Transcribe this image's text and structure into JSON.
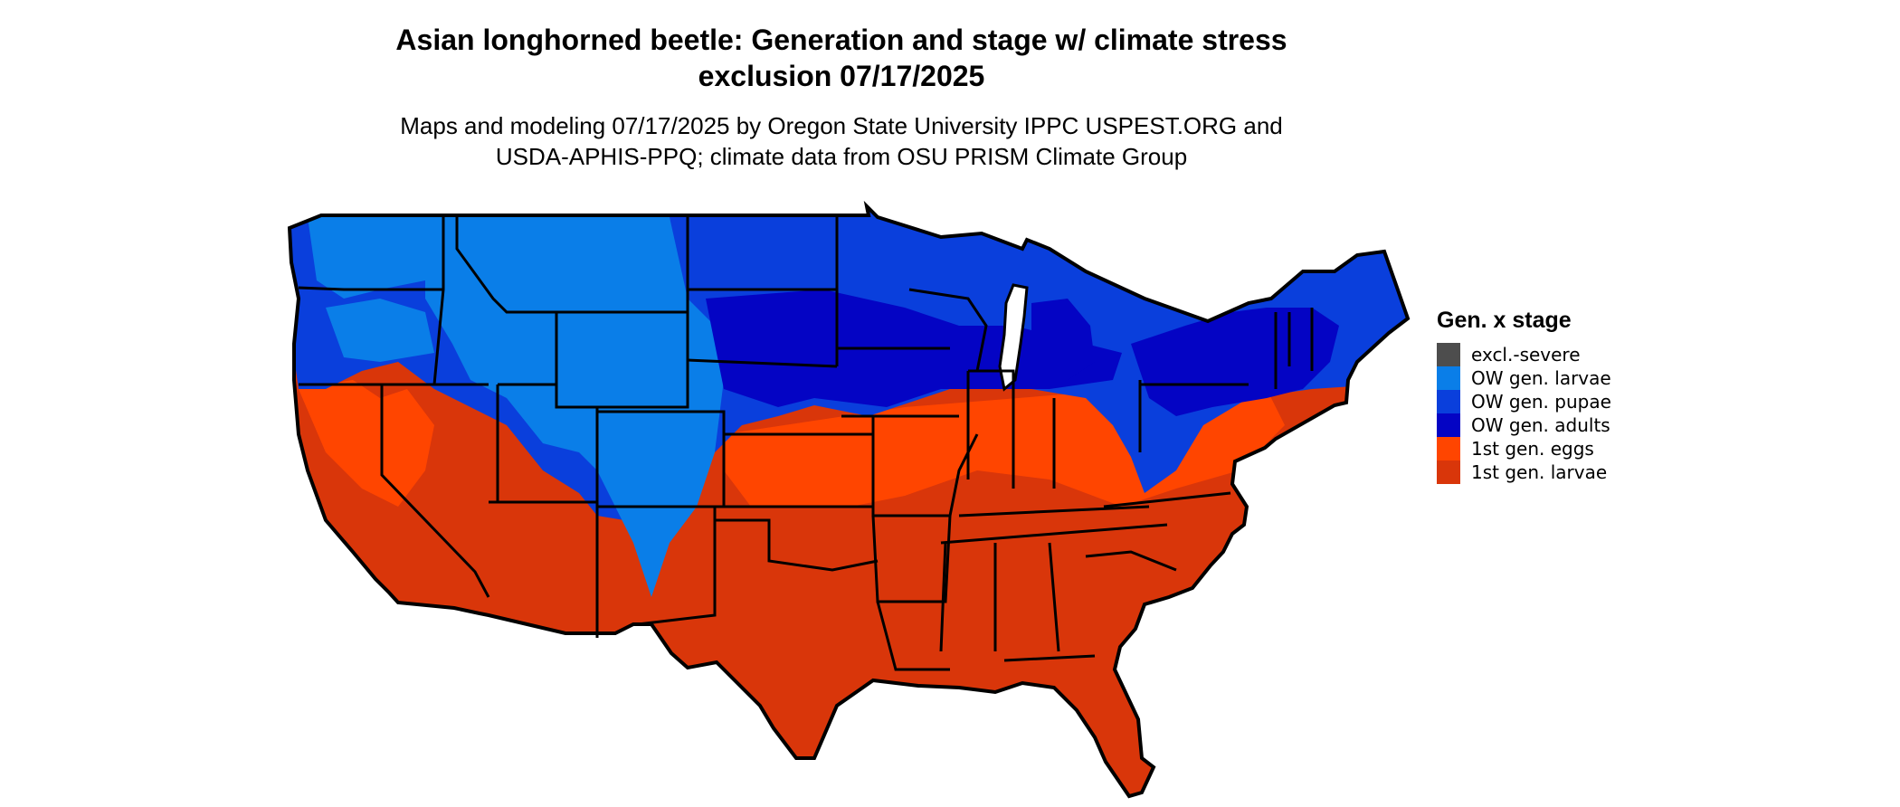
{
  "map": {
    "title_line1": "Asian longhorned beetle: Generation and stage w/ climate stress",
    "title_line2": "exclusion 07/17/2025",
    "subtitle_line1": "Maps and modeling 07/17/2025 by Oregon State University IPPC USPEST.ORG and",
    "subtitle_line2": "USDA-APHIS-PPQ; climate data from OSU PRISM Climate Group",
    "region": "Contiguous United States",
    "legend": {
      "title": "Gen. x stage",
      "items": [
        {
          "label": "excl.-severe",
          "color": "#4d4d4d"
        },
        {
          "label": "OW gen. larvae",
          "color": "#0a7ee8"
        },
        {
          "label": "OW gen. pupae",
          "color": "#0a3fdc"
        },
        {
          "label": "OW gen. adults",
          "color": "#0404c4"
        },
        {
          "label": "1st gen. eggs",
          "color": "#ff4500"
        },
        {
          "label": "1st gen. larvae",
          "color": "#d9360a"
        }
      ]
    },
    "colors": {
      "state_border": "#000000",
      "background": "#ffffff"
    }
  }
}
